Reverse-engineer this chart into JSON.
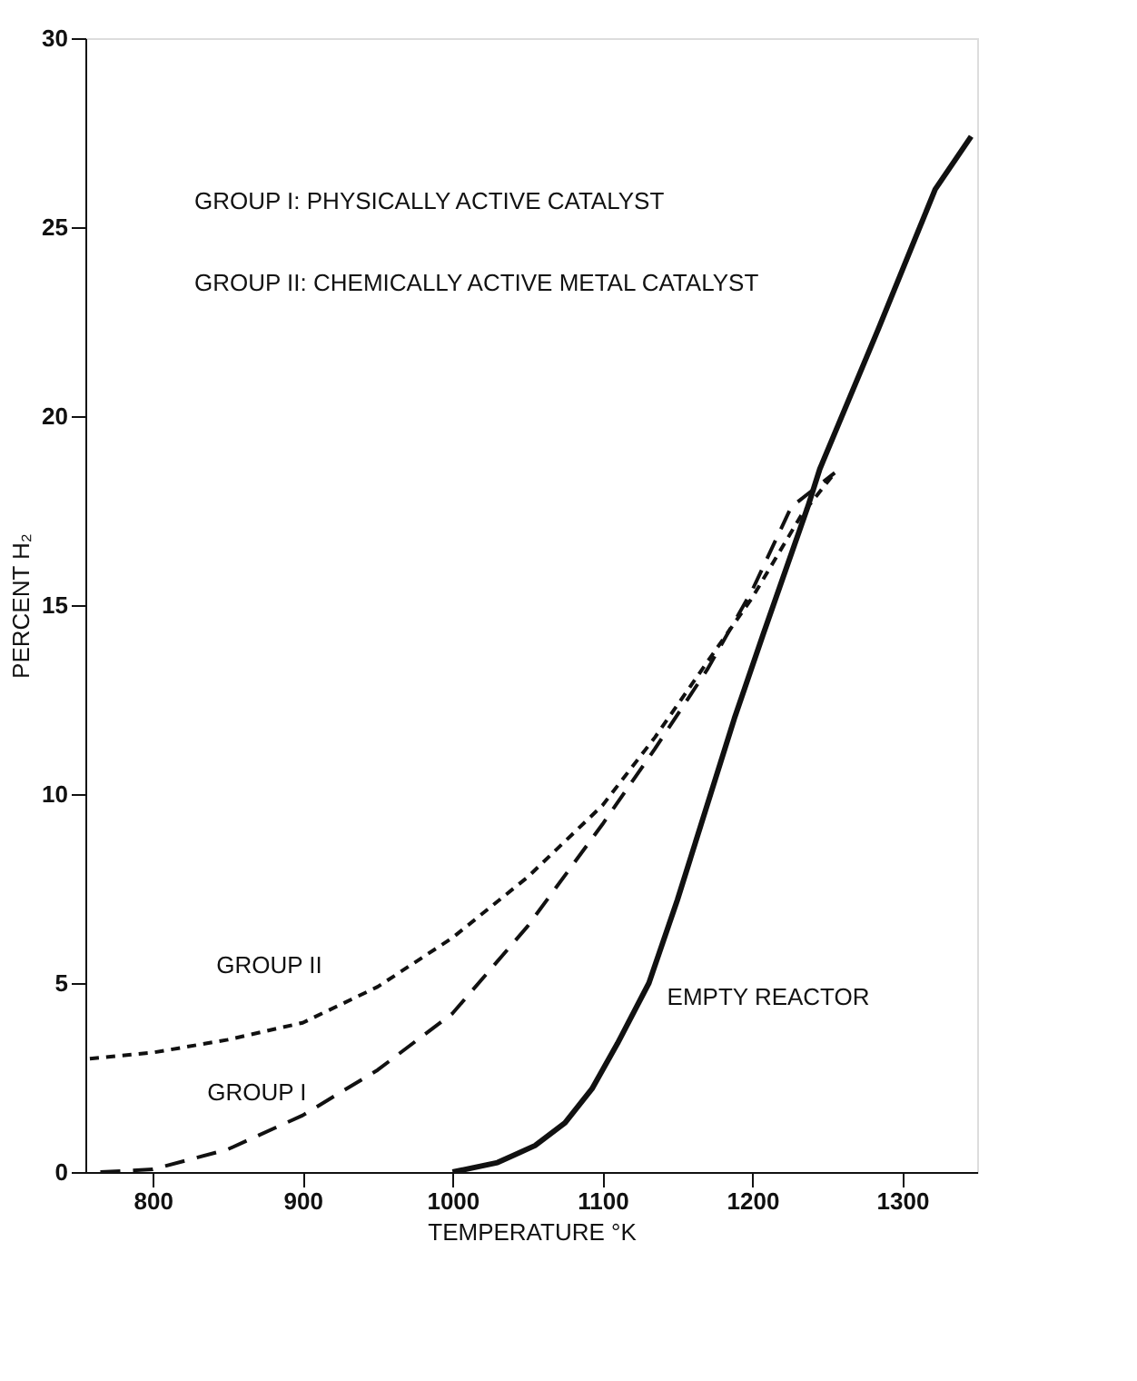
{
  "chart_data": {
    "type": "line",
    "xlabel": "TEMPERATURE °K",
    "ylabel": "PERCENT H₂",
    "xlim": [
      755,
      1350
    ],
    "xticks": [
      800,
      900,
      1000,
      1100,
      1200,
      1300
    ],
    "ylim": [
      0,
      30
    ],
    "yticks": [
      0,
      5,
      10,
      15,
      20,
      25,
      30
    ],
    "grid": false,
    "legend": false,
    "marker": "none",
    "series": [
      {
        "name": "GROUP II",
        "color": "#111111",
        "line_style": "dotted",
        "x": [
          758,
          800,
          850,
          900,
          950,
          1000,
          1050,
          1100,
          1135,
          1170,
          1200,
          1233,
          1255
        ],
        "values": [
          3.0,
          3.16,
          3.5,
          3.95,
          4.9,
          6.2,
          7.8,
          9.7,
          11.5,
          13.5,
          15.2,
          17.4,
          18.5
        ]
      },
      {
        "name": "GROUP I",
        "color": "#111111",
        "line_style": "dashed",
        "x": [
          765,
          800,
          850,
          900,
          950,
          1000,
          1050,
          1100,
          1135,
          1170,
          1200,
          1226,
          1255
        ],
        "values": [
          0,
          0.07,
          0.6,
          1.5,
          2.7,
          4.2,
          6.5,
          9.2,
          11.2,
          13.3,
          15.4,
          17.6,
          18.5
        ]
      },
      {
        "name": "EMPTY REACTOR",
        "color": "#111111",
        "line_style": "solid",
        "x": [
          1000,
          1030,
          1055,
          1075,
          1093,
          1110,
          1131,
          1150,
          1169,
          1188,
          1207,
          1237,
          1245,
          1284,
          1322,
          1346
        ],
        "values": [
          0,
          0.25,
          0.7,
          1.3,
          2.2,
          3.4,
          5.0,
          7.2,
          9.6,
          12.0,
          14.2,
          17.6,
          18.6,
          22.3,
          26.0,
          27.4
        ]
      }
    ],
    "annotations": [
      "GROUP I: PHYSICALLY ACTIVE CATALYST",
      "GROUP II: CHEMICALLY ACTIVE METAL CATALYST"
    ]
  }
}
